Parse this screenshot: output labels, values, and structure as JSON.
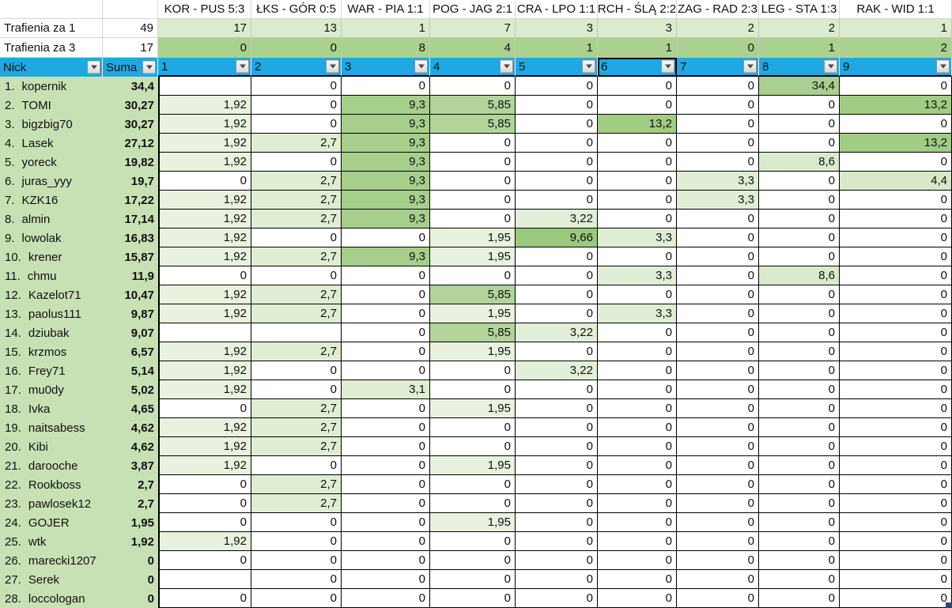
{
  "stats": {
    "za1": {
      "label": "Trafienia za 1",
      "total": "49"
    },
    "za3": {
      "label": "Trafienia za 3",
      "total": "17"
    }
  },
  "filter": {
    "nick_label": "Nick",
    "suma_label": "Suma",
    "selected_column": "6"
  },
  "matches": [
    {
      "col": "1",
      "label": "KOR - PUS 5:3",
      "za1": "17",
      "za3": "0"
    },
    {
      "col": "2",
      "label": "ŁKS - GÓR 0:5",
      "za1": "13",
      "za3": "0"
    },
    {
      "col": "3",
      "label": "WAR - PIA 1:1",
      "za1": "1",
      "za3": "8"
    },
    {
      "col": "4",
      "label": "POG - JAG 2:1",
      "za1": "7",
      "za3": "4"
    },
    {
      "col": "5",
      "label": "CRA - LPO 1:1",
      "za1": "3",
      "za3": "1"
    },
    {
      "col": "6",
      "label": "RCH - ŚLĄ 2:2",
      "za1": "3",
      "za3": "1"
    },
    {
      "col": "7",
      "label": "ZAG - RAD 2:3",
      "za1": "2",
      "za3": "0"
    },
    {
      "col": "8",
      "label": "LEG - STA 1:3",
      "za1": "2",
      "za3": "1"
    },
    {
      "col": "9",
      "label": "RAK - WID 1:1",
      "za1": "1",
      "za3": "2"
    }
  ],
  "players": [
    {
      "rank": "1.",
      "nick": "kopernik",
      "suma": "34,4",
      "scores": [
        "",
        "0",
        "0",
        "0",
        "0",
        "0",
        "0",
        "34,4",
        "0"
      ]
    },
    {
      "rank": "2.",
      "nick": "TOMI",
      "suma": "30,27",
      "scores": [
        "1,92",
        "0",
        "9,3",
        "5,85",
        "0",
        "0",
        "0",
        "0",
        "13,2"
      ]
    },
    {
      "rank": "3.",
      "nick": "bigzbig70",
      "suma": "30,27",
      "scores": [
        "1,92",
        "0",
        "9,3",
        "5,85",
        "0",
        "13,2",
        "0",
        "0",
        "0"
      ]
    },
    {
      "rank": "4.",
      "nick": "Lasek",
      "suma": "27,12",
      "scores": [
        "1,92",
        "2,7",
        "9,3",
        "0",
        "0",
        "0",
        "0",
        "0",
        "13,2"
      ]
    },
    {
      "rank": "5.",
      "nick": "yoreck",
      "suma": "19,82",
      "scores": [
        "1,92",
        "0",
        "9,3",
        "0",
        "0",
        "0",
        "0",
        "8,6",
        "0"
      ]
    },
    {
      "rank": "6.",
      "nick": "juras_yyy",
      "suma": "19,7",
      "scores": [
        "0",
        "2,7",
        "9,3",
        "0",
        "0",
        "0",
        "3,3",
        "0",
        "4,4"
      ]
    },
    {
      "rank": "7.",
      "nick": "KZK16",
      "suma": "17,22",
      "scores": [
        "1,92",
        "2,7",
        "9,3",
        "0",
        "0",
        "0",
        "3,3",
        "0",
        "0"
      ]
    },
    {
      "rank": "8.",
      "nick": "almin",
      "suma": "17,14",
      "scores": [
        "1,92",
        "2,7",
        "9,3",
        "0",
        "3,22",
        "0",
        "0",
        "0",
        "0"
      ]
    },
    {
      "rank": "9.",
      "nick": "lowolak",
      "suma": "16,83",
      "scores": [
        "1,92",
        "0",
        "0",
        "1,95",
        "9,66",
        "3,3",
        "0",
        "0",
        "0"
      ]
    },
    {
      "rank": "10.",
      "nick": "krener",
      "suma": "15,87",
      "scores": [
        "1,92",
        "2,7",
        "9,3",
        "1,95",
        "0",
        "0",
        "0",
        "0",
        "0"
      ]
    },
    {
      "rank": "11.",
      "nick": "chmu",
      "suma": "11,9",
      "scores": [
        "0",
        "0",
        "0",
        "0",
        "0",
        "3,3",
        "0",
        "8,6",
        "0"
      ]
    },
    {
      "rank": "12.",
      "nick": "Kazelot71",
      "suma": "10,47",
      "scores": [
        "1,92",
        "2,7",
        "0",
        "5,85",
        "0",
        "0",
        "0",
        "0",
        "0"
      ]
    },
    {
      "rank": "13.",
      "nick": "paolus111",
      "suma": "9,87",
      "scores": [
        "1,92",
        "2,7",
        "0",
        "1,95",
        "0",
        "3,3",
        "0",
        "0",
        "0"
      ]
    },
    {
      "rank": "14.",
      "nick": "dziubak",
      "suma": "9,07",
      "scores": [
        "",
        "",
        "0",
        "5,85",
        "3,22",
        "0",
        "0",
        "0",
        "0"
      ]
    },
    {
      "rank": "15.",
      "nick": "krzmos",
      "suma": "6,57",
      "scores": [
        "1,92",
        "2,7",
        "0",
        "1,95",
        "0",
        "0",
        "0",
        "0",
        "0"
      ]
    },
    {
      "rank": "16.",
      "nick": "Frey71",
      "suma": "5,14",
      "scores": [
        "1,92",
        "0",
        "0",
        "0",
        "3,22",
        "0",
        "0",
        "0",
        "0"
      ]
    },
    {
      "rank": "17.",
      "nick": "mu0dy",
      "suma": "5,02",
      "scores": [
        "1,92",
        "0",
        "3,1",
        "0",
        "0",
        "0",
        "0",
        "0",
        "0"
      ]
    },
    {
      "rank": "18.",
      "nick": "Ivka",
      "suma": "4,65",
      "scores": [
        "0",
        "2,7",
        "0",
        "1,95",
        "0",
        "0",
        "0",
        "0",
        "0"
      ]
    },
    {
      "rank": "19.",
      "nick": "naitsabess",
      "suma": "4,62",
      "scores": [
        "1,92",
        "2,7",
        "0",
        "0",
        "0",
        "0",
        "0",
        "0",
        "0"
      ]
    },
    {
      "rank": "20.",
      "nick": "Kibi",
      "suma": "4,62",
      "scores": [
        "1,92",
        "2,7",
        "0",
        "0",
        "0",
        "0",
        "0",
        "0",
        "0"
      ]
    },
    {
      "rank": "21.",
      "nick": "darooche",
      "suma": "3,87",
      "scores": [
        "1,92",
        "0",
        "0",
        "1,95",
        "0",
        "0",
        "0",
        "0",
        "0"
      ]
    },
    {
      "rank": "22.",
      "nick": "Rookboss",
      "suma": "2,7",
      "scores": [
        "0",
        "2,7",
        "0",
        "0",
        "0",
        "0",
        "0",
        "0",
        "0"
      ]
    },
    {
      "rank": "23.",
      "nick": "pawlosek12",
      "suma": "2,7",
      "scores": [
        "0",
        "2,7",
        "0",
        "0",
        "0",
        "0",
        "0",
        "0",
        "0"
      ]
    },
    {
      "rank": "24.",
      "nick": "GOJER",
      "suma": "1,95",
      "scores": [
        "0",
        "0",
        "0",
        "1,95",
        "0",
        "0",
        "0",
        "0",
        "0"
      ]
    },
    {
      "rank": "25.",
      "nick": "wtk",
      "suma": "1,92",
      "scores": [
        "1,92",
        "0",
        "0",
        "0",
        "0",
        "0",
        "0",
        "0",
        "0"
      ]
    },
    {
      "rank": "26.",
      "nick": "marecki1207",
      "suma": "0",
      "scores": [
        "0",
        "0",
        "0",
        "0",
        "0",
        "0",
        "0",
        "0",
        "0"
      ]
    },
    {
      "rank": "27.",
      "nick": "Serek",
      "suma": "0",
      "scores": [
        "",
        "0",
        "0",
        "0",
        "0",
        "0",
        "0",
        "0",
        "0"
      ]
    },
    {
      "rank": "28.",
      "nick": "loccologan",
      "suma": "0",
      "scores": [
        "0",
        "0",
        "0",
        "0",
        "0",
        "0",
        "0",
        "0",
        "0"
      ]
    }
  ],
  "colors": {
    "header_blue": "#1fa8e1",
    "nick_column_green": "#c8e1b4",
    "za1_row_green": "#dcebce",
    "za3_row_green": "#aad18e",
    "fill_handle_navy": "#2e4372",
    "score_scale": {
      "": "#ffffff",
      "0": "#ffffff",
      "1,92": "#e8f2df",
      "1,95": "#e8f2df",
      "2,7": "#dfeed3",
      "3,1": "#dfeed3",
      "3,22": "#e2efd9",
      "3,3": "#e0eed6",
      "4,4": "#d7e9c9",
      "5,85": "#b2d49b",
      "8,6": "#daebcd",
      "9,3": "#a7cf8c",
      "9,66": "#9bc97e",
      "13,2": "#a1cc83",
      "34,4": "#a9d08e"
    }
  }
}
